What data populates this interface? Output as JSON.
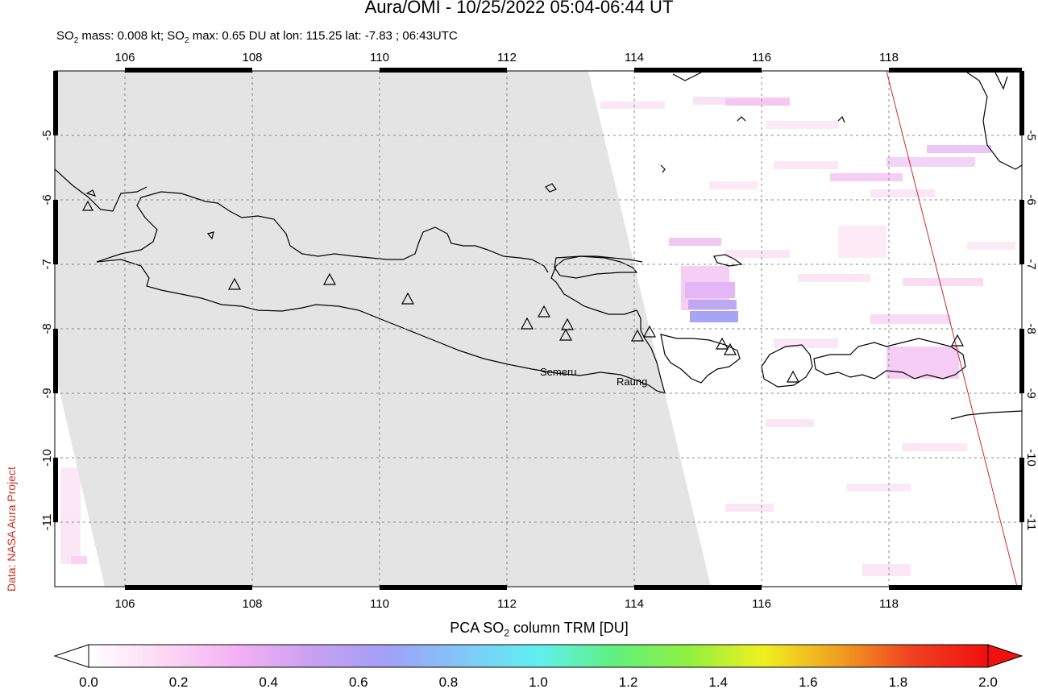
{
  "header": {
    "title": "Aura/OMI - 10/25/2022 05:04-06:44 UT",
    "subtitle_part1": "SO",
    "subtitle_sub1": "2",
    "subtitle_part2": " mass: 0.008 kt; SO",
    "subtitle_sub2": "2",
    "subtitle_part3": " max: 0.65 DU at lon: 115.25 lat: -7.83 ; 06:43UTC"
  },
  "credit": "Data: NASA Aura Project",
  "map": {
    "lon_range": [
      105,
      120
    ],
    "lat_range": [
      -12,
      -4
    ],
    "lon_ticks": [
      "106",
      "108",
      "110",
      "112",
      "114",
      "116",
      "118"
    ],
    "lat_ticks": [
      "-5",
      "-6",
      "-7",
      "-8",
      "-9",
      "-10",
      "-11"
    ],
    "volcano_labels": [
      {
        "name": "Semeru"
      },
      {
        "name": "Raung"
      }
    ],
    "no_data_color": "#e4e4e4",
    "coastline_color": "#000000",
    "orbit_line_color": "#c0302a"
  },
  "colorbar": {
    "title_part1": "PCA SO",
    "title_sub": "2",
    "title_part2": " column TRM [DU]",
    "tick_labels": [
      "0.0",
      "0.2",
      "0.4",
      "0.6",
      "0.8",
      "1.0",
      "1.2",
      "1.4",
      "1.6",
      "1.8",
      "2.0"
    ],
    "range": [
      0,
      2
    ],
    "colors": [
      "#ffffff",
      "#fcd8f4",
      "#f4b0f4",
      "#c8a0f0",
      "#a0a0f8",
      "#80c8f8",
      "#60f0f0",
      "#60f080",
      "#90f040",
      "#f0f020",
      "#f0a020",
      "#f04020",
      "#f01010"
    ]
  }
}
